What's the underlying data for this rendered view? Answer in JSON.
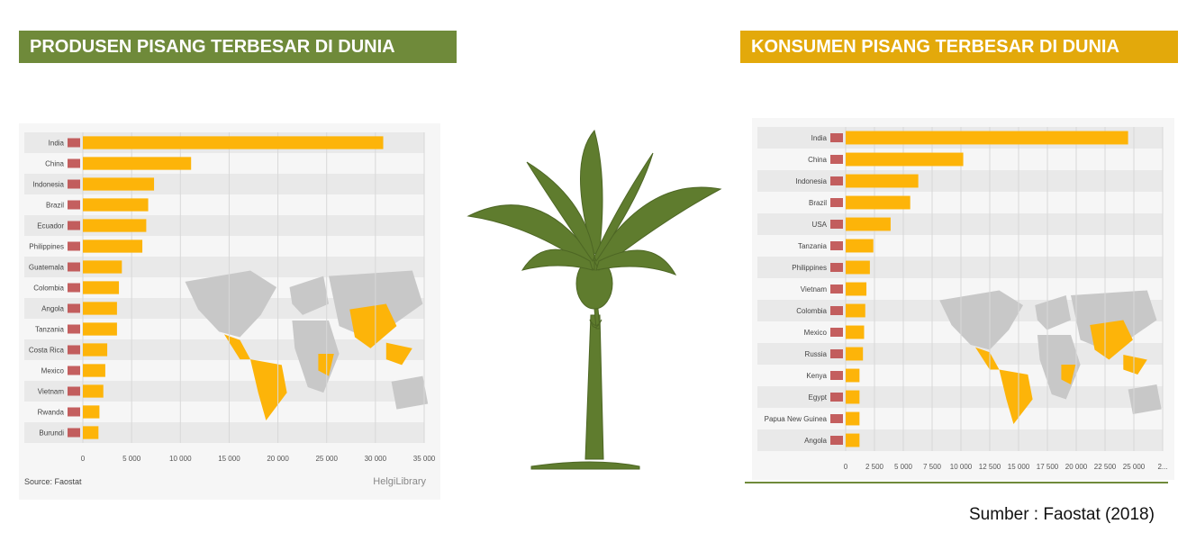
{
  "banners": {
    "left": "PRODUSEN PISANG TERBESAR DI DUNIA",
    "right": "KONSUMEN PISANG TERBESAR DI DUNIA"
  },
  "colors": {
    "green": "#6f8a3a",
    "gold": "#e3a90b",
    "bar": "#fdb409",
    "map_gray": "#c8c8c8",
    "map_highlight": "#fdb409"
  },
  "chart_data": [
    {
      "type": "bar",
      "orientation": "horizontal",
      "categories": [
        "India",
        "China",
        "Indonesia",
        "Brazil",
        "Ecuador",
        "Philippines",
        "Guatemala",
        "Colombia",
        "Angola",
        "Tanzania",
        "Costa Rica",
        "Mexico",
        "Vietnam",
        "Rwanda",
        "Burundi"
      ],
      "values": [
        30800,
        11100,
        7300,
        6700,
        6500,
        6100,
        4000,
        3700,
        3500,
        3500,
        2500,
        2300,
        2100,
        1700,
        1600
      ],
      "xticks": [
        "0",
        "5 000",
        "10 000",
        "15 000",
        "20 000",
        "25 000",
        "30 000",
        "35 000"
      ],
      "xlim": [
        0,
        35000
      ],
      "source": "Source: Faostat",
      "brand": "HelgiLibrary",
      "grid": true
    },
    {
      "type": "bar",
      "orientation": "horizontal",
      "categories": [
        "India",
        "China",
        "Indonesia",
        "Brazil",
        "USA",
        "Tanzania",
        "Philippines",
        "Vietnam",
        "Colombia",
        "Mexico",
        "Russia",
        "Kenya",
        "Egypt",
        "Papua New Guinea",
        "Angola"
      ],
      "values": [
        24500,
        10200,
        6300,
        5600,
        3900,
        2400,
        2100,
        1800,
        1700,
        1600,
        1500,
        1200,
        1200,
        1200,
        1200
      ],
      "xticks": [
        "0",
        "2 500",
        "5 000",
        "7 500",
        "10 000",
        "12 500",
        "15 000",
        "17 500",
        "20 000",
        "22 500",
        "25 000",
        "2..."
      ],
      "xlim": [
        0,
        27500
      ],
      "grid": true
    }
  ],
  "footer": {
    "source_note": "Sumber : Faostat (2018)"
  },
  "icons": {
    "tree": "banana-tree-icon",
    "map": "world-map-icon"
  }
}
